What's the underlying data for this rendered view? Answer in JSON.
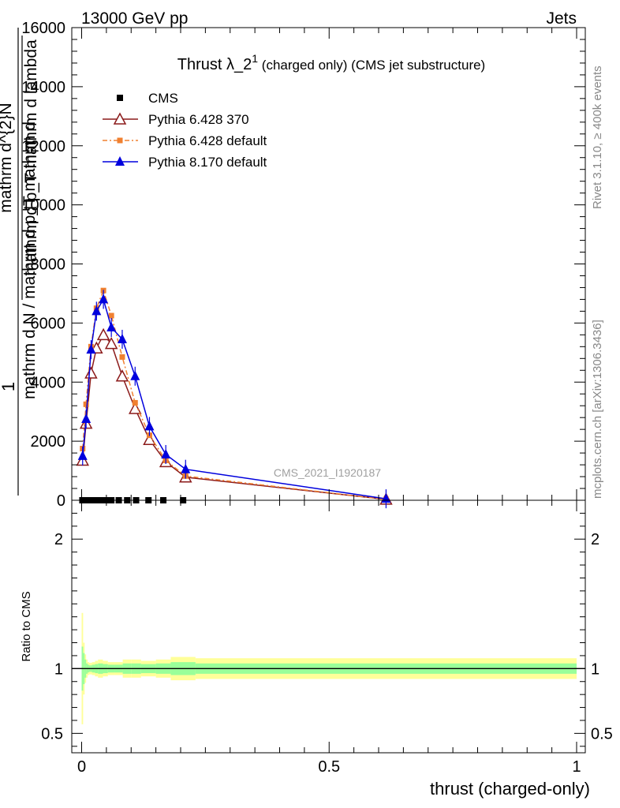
{
  "header": {
    "left": "13000 GeV pp",
    "right": "Jets"
  },
  "side_labels": {
    "rivet": "Rivet 3.1.10, ≥ 400k events",
    "mcplots": "mcplots.cern.ch [arXiv:1306.3436]"
  },
  "chart_data": [
    {
      "type": "line",
      "title_main": "Thrust λ_2",
      "title_sup": "1",
      "title_rest": " (charged only) (CMS jet substructure)",
      "watermark": "CMS_2021_I1920187",
      "ylabel_parts": [
        "1",
        "mathrm d N / mathrm d p_T mathrm d",
        "mathrm d^{2}N",
        "mathrm d p_T mathrm d lambda"
      ],
      "xlim": [
        0,
        1
      ],
      "ylim": [
        0,
        16000
      ],
      "yticks": [
        0,
        2000,
        4000,
        6000,
        8000,
        10000,
        12000,
        14000,
        16000
      ],
      "ytick_labels": [
        "0",
        "2000",
        "4000",
        "6000",
        "8000",
        "10000",
        "12000",
        "14000",
        "16000"
      ],
      "legend_position": "top-left",
      "series": [
        {
          "name": "CMS",
          "color": "#000000",
          "marker": "square",
          "x": [
            0.0015,
            0.0045,
            0.0075,
            0.0105,
            0.0135,
            0.0165,
            0.0195,
            0.024,
            0.03,
            0.038,
            0.048,
            0.06,
            0.075,
            0.092,
            0.11,
            0.135,
            0.165,
            0.205
          ],
          "y": [
            0,
            0,
            0,
            0,
            0,
            0,
            0,
            0,
            0,
            0,
            0,
            0,
            0,
            0,
            0,
            0,
            0,
            0
          ]
        },
        {
          "name": "Pythia 6.428 370",
          "color": "#8b1a1a",
          "marker": "open-triangle",
          "x": [
            0.002,
            0.009,
            0.019,
            0.03,
            0.044,
            0.06,
            0.082,
            0.108,
            0.137,
            0.17,
            0.21,
            0.615
          ],
          "y": [
            1350,
            2600,
            4300,
            5150,
            5600,
            5300,
            4200,
            3100,
            2050,
            1300,
            780,
            30
          ]
        },
        {
          "name": "Pythia 6.428 default",
          "color": "#f08030",
          "marker": "filled-square",
          "x": [
            0.002,
            0.009,
            0.019,
            0.03,
            0.044,
            0.06,
            0.082,
            0.108,
            0.137,
            0.17,
            0.21,
            0.615
          ],
          "y": [
            1750,
            3250,
            5200,
            6500,
            7100,
            6250,
            4850,
            3300,
            2200,
            1350,
            820,
            30
          ]
        },
        {
          "name": "Pythia 8.170 default",
          "color": "#0000dd",
          "marker": "filled-triangle",
          "x": [
            0.002,
            0.009,
            0.019,
            0.03,
            0.044,
            0.06,
            0.082,
            0.108,
            0.137,
            0.17,
            0.21,
            0.615
          ],
          "y": [
            1500,
            2750,
            5100,
            6400,
            6800,
            5850,
            5450,
            4200,
            2500,
            1550,
            1050,
            50
          ]
        }
      ]
    },
    {
      "type": "area",
      "ylabel": "Ratio to CMS",
      "xlabel": "thrust (charged-only)",
      "xlim": [
        0,
        1
      ],
      "ylim": [
        0.35,
        2.3
      ],
      "xticks": [
        0,
        0.5,
        1
      ],
      "xtick_labels": [
        "0",
        "0.5",
        "1"
      ],
      "yticks": [
        0.5,
        1,
        2
      ],
      "ytick_labels": [
        "0.5",
        "1",
        "2"
      ],
      "reference_line": 1,
      "band_colors": {
        "outer": "#ffff99",
        "inner": "#99ff99",
        "line": "#000000"
      },
      "bins": [
        0,
        0.003,
        0.006,
        0.009,
        0.012,
        0.015,
        0.018,
        0.021,
        0.027,
        0.033,
        0.043,
        0.053,
        0.067,
        0.083,
        0.1,
        0.12,
        0.15,
        0.18,
        0.23,
        1.0
      ],
      "outer_half_width": [
        0.43,
        0.2,
        0.11,
        0.07,
        0.05,
        0.045,
        0.045,
        0.05,
        0.06,
        0.07,
        0.06,
        0.05,
        0.05,
        0.07,
        0.07,
        0.06,
        0.07,
        0.09,
        0.08
      ],
      "inner_half_width": [
        0.17,
        0.12,
        0.07,
        0.04,
        0.03,
        0.025,
        0.025,
        0.03,
        0.035,
        0.04,
        0.035,
        0.03,
        0.03,
        0.04,
        0.04,
        0.035,
        0.04,
        0.05,
        0.04
      ]
    }
  ]
}
